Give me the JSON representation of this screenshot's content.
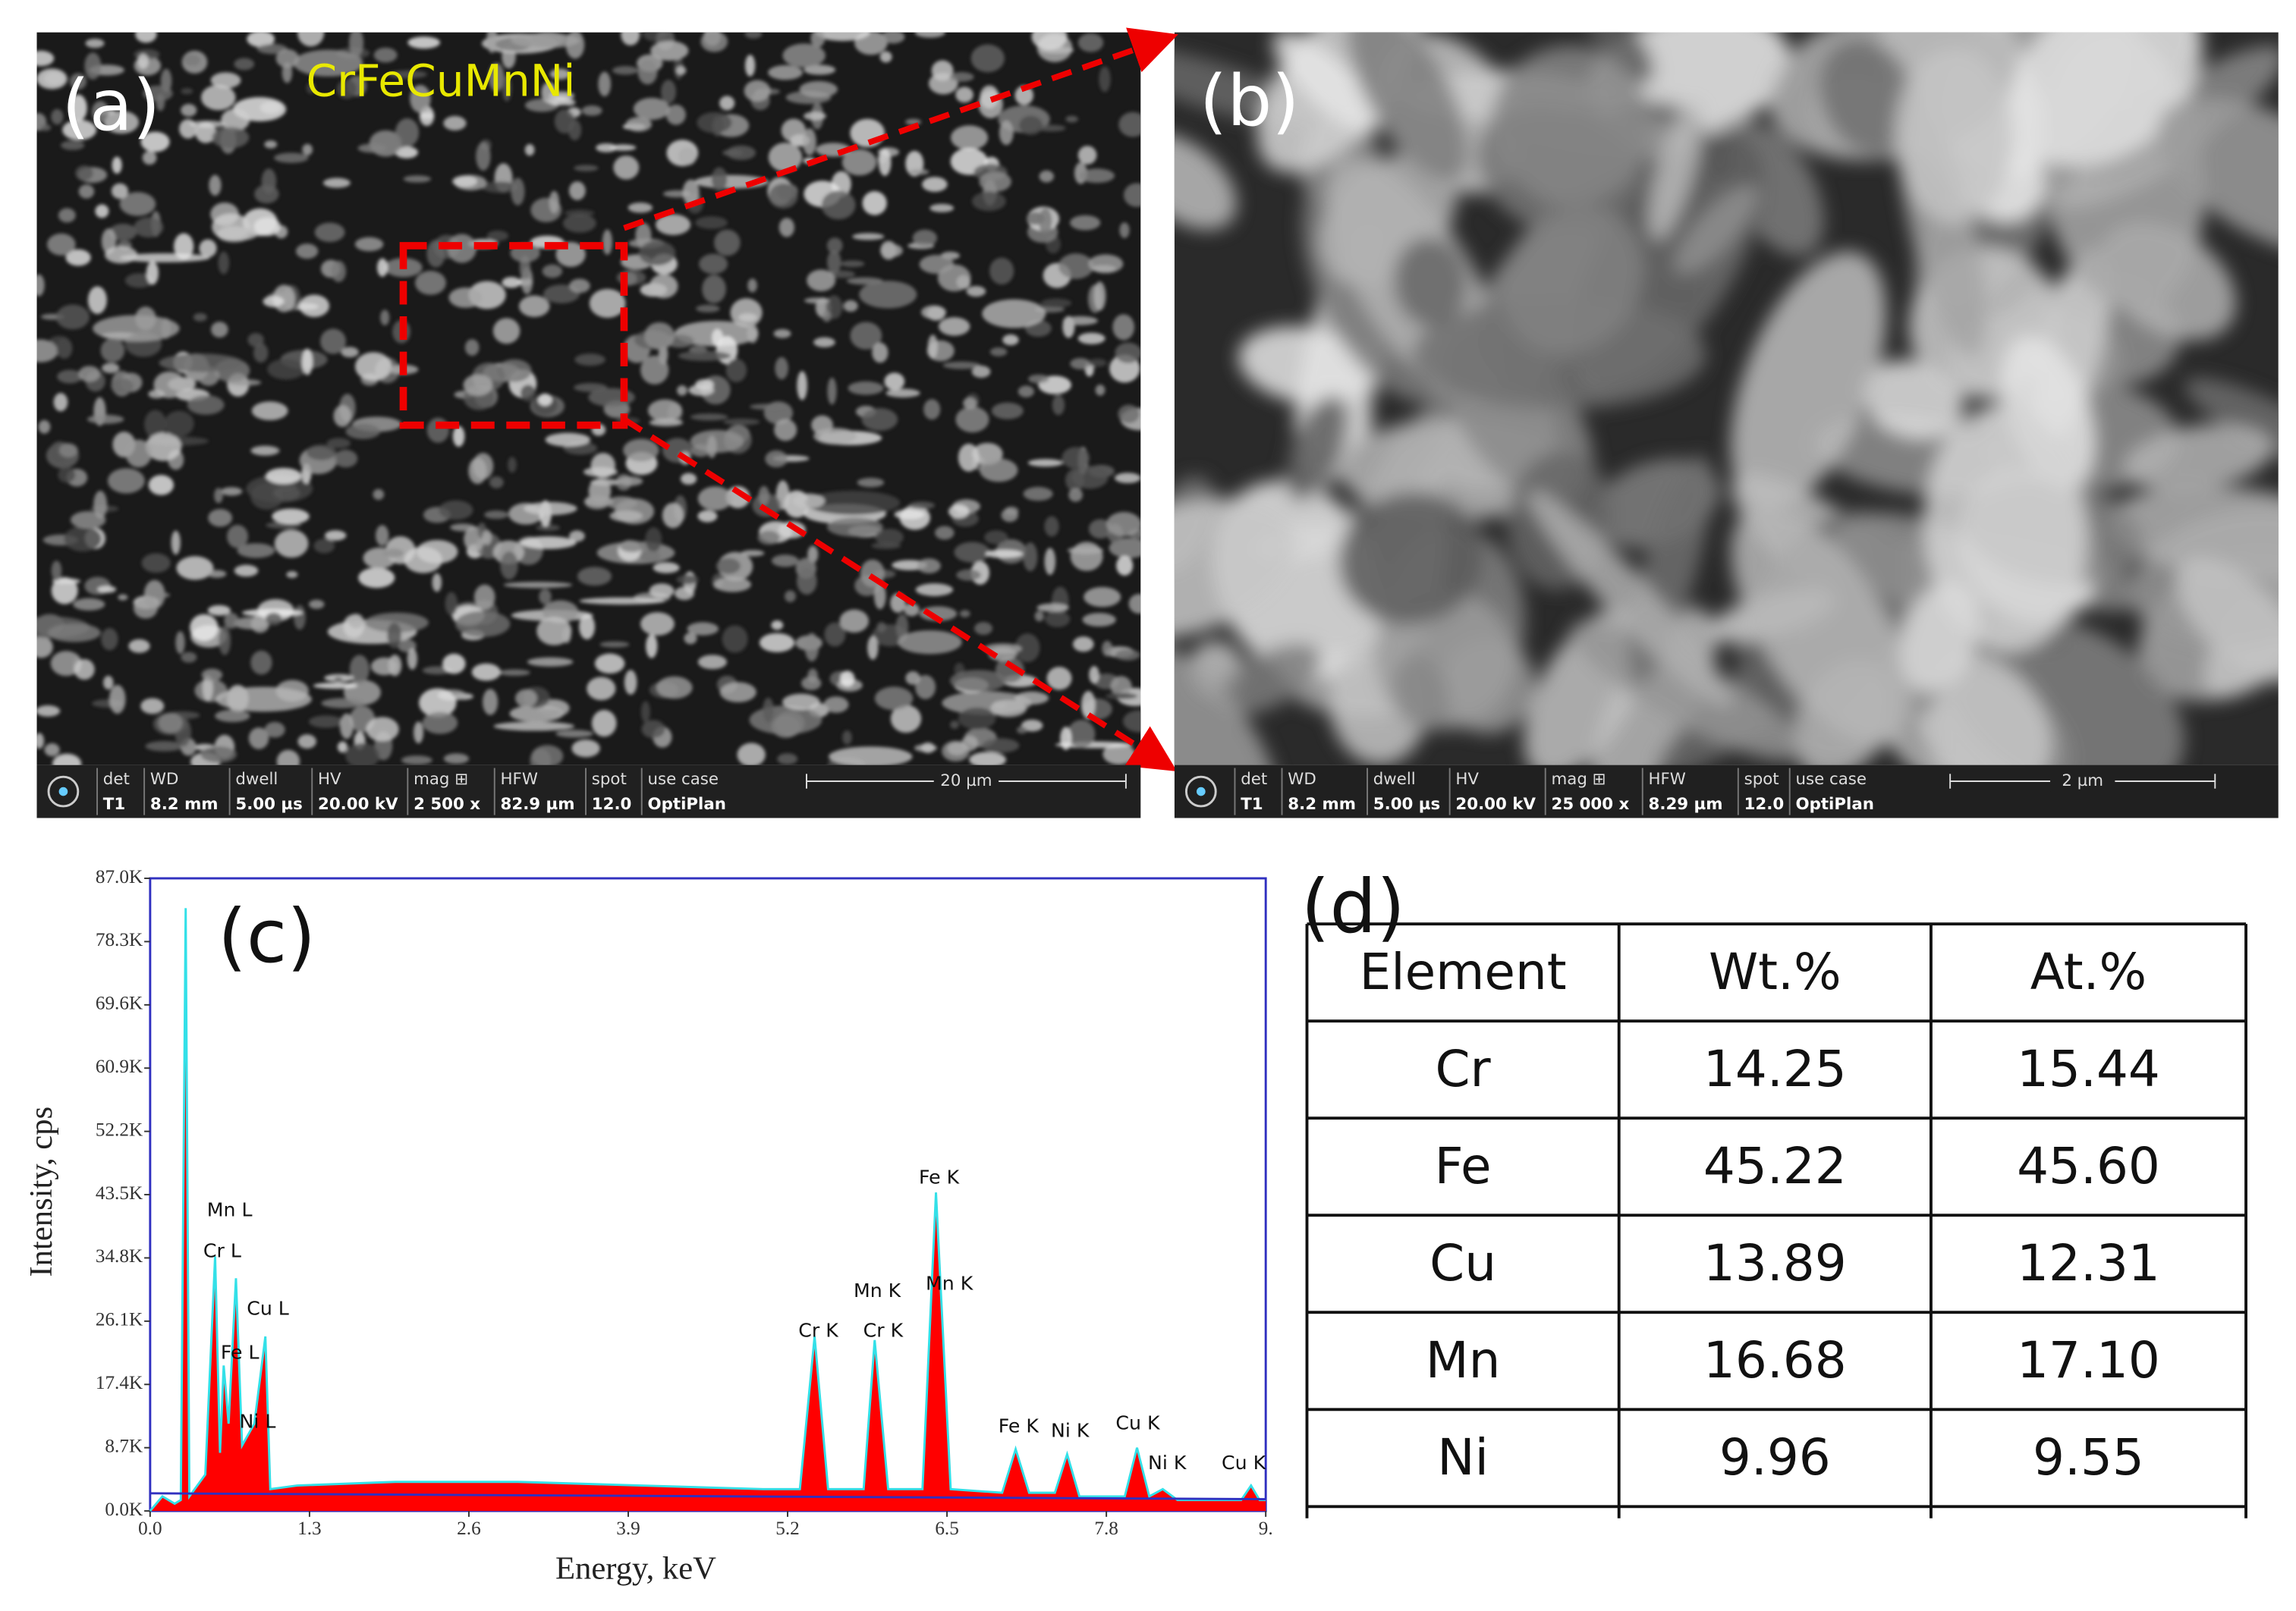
{
  "panels": {
    "a": {
      "label": "(a)",
      "sample": "CrFeCuMnNi",
      "info": {
        "headers": [
          "det",
          "WD",
          "dwell",
          "HV",
          "mag ⊞",
          "HFW",
          "spot",
          "use case"
        ],
        "values": [
          "T1",
          "8.2 mm",
          "5.00 µs",
          "20.00 kV",
          "2 500 x",
          "82.9 µm",
          "12.0",
          "OptiPlan"
        ],
        "scale_bar": "20 µm"
      }
    },
    "b": {
      "label": "(b)",
      "info": {
        "headers": [
          "det",
          "WD",
          "dwell",
          "HV",
          "mag ⊞",
          "HFW",
          "spot",
          "use case"
        ],
        "values": [
          "T1",
          "8.2 mm",
          "5.00 µs",
          "20.00 kV",
          "25 000 x",
          "8.29 µm",
          "12.0",
          "OptiPlan"
        ],
        "scale_bar": "2 µm"
      }
    },
    "c": {
      "label": "(c)"
    },
    "d": {
      "label": "(d)"
    }
  },
  "chart_data": {
    "type": "area",
    "x_label": "Energy, keV",
    "y_label": "Intensity, cps",
    "x": [
      0.0,
      0.1,
      0.2,
      0.25,
      0.29,
      0.32,
      0.45,
      0.53,
      0.57,
      0.6,
      0.64,
      0.7,
      0.75,
      0.85,
      0.94,
      0.98,
      1.2,
      2.0,
      3.0,
      4.0,
      5.0,
      5.3,
      5.42,
      5.53,
      5.82,
      5.91,
      6.02,
      6.3,
      6.41,
      6.53,
      6.95,
      7.06,
      7.17,
      7.38,
      7.48,
      7.58,
      7.95,
      8.05,
      8.15,
      8.26,
      8.38,
      8.9,
      8.98,
      9.05,
      9.1
    ],
    "values": [
      0,
      2000,
      1000,
      1500,
      82900,
      2000,
      5000,
      35000,
      8000,
      20000,
      12000,
      32000,
      9000,
      12000,
      24000,
      3000,
      3500,
      4000,
      4000,
      3500,
      3000,
      3000,
      24000,
      3000,
      3000,
      23500,
      3000,
      3000,
      43800,
      3000,
      2500,
      8500,
      2500,
      2500,
      7800,
      2000,
      2000,
      8700,
      2000,
      3000,
      1500,
      1500,
      3500,
      1500,
      1500
    ],
    "color": "#ff0000",
    "line_color": "#33e0e8",
    "xlim": [
      0,
      9.1
    ],
    "xticks": [
      {
        "value": 0,
        "label": "0.0"
      },
      1.3,
      2.6,
      3.9,
      5.2,
      6.5,
      7.8,
      {
        "value": 9.1,
        "label": "9."
      }
    ],
    "ylim": [
      0,
      87000
    ],
    "yticks": [
      {
        "value": 0,
        "label": "0.0K"
      },
      {
        "value": 8700,
        "label": "8.7K"
      },
      {
        "value": 17400,
        "label": "17.4K"
      },
      {
        "value": 26100,
        "label": "26.1K"
      },
      {
        "value": 34800,
        "label": "34.8K"
      },
      {
        "value": 43500,
        "label": "43.5K"
      },
      {
        "value": 52200,
        "label": "52.2K"
      },
      {
        "value": 60900,
        "label": "60.9K"
      },
      {
        "value": 69600,
        "label": "69.6K"
      },
      {
        "value": 78300,
        "label": "78.3K"
      },
      {
        "value": 87000,
        "label": "87.0K"
      }
    ],
    "annotations": [
      "Mn L",
      "Cr L",
      "Cu L",
      "Fe L",
      "Ni L",
      "Cr K",
      "Cr K",
      "Mn K",
      "Mn K",
      "Fe K",
      "Fe K",
      "Ni K",
      "Cu K",
      "Ni K",
      "Cu K"
    ]
  },
  "table": {
    "header": [
      "Element",
      "Wt.%",
      "At.%"
    ],
    "rows": [
      [
        "Cr",
        "14.25",
        "15.44"
      ],
      [
        "Fe",
        "45.22",
        "45.60"
      ],
      [
        "Cu",
        "13.89",
        "12.31"
      ],
      [
        "Mn",
        "16.68",
        "17.10"
      ],
      [
        "Ni",
        "9.96",
        "9.55"
      ]
    ]
  }
}
